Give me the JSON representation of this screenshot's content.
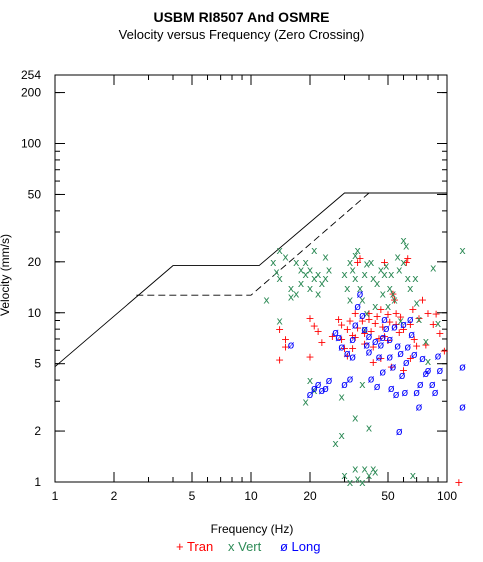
{
  "chart_data": {
    "type": "scatter",
    "title": "USBM RI8507 And OSMRE",
    "subtitle": "Velocity versus Frequency (Zero Crossing)",
    "xlabel": "Frequency (Hz)",
    "ylabel": "Velocity (mm/s)",
    "x_scale": "log",
    "y_scale": "log",
    "xlim": [
      1,
      100
    ],
    "ylim": [
      1,
      254
    ],
    "x_ticks": [
      1,
      2,
      5,
      10,
      20,
      50,
      100
    ],
    "y_ticks": [
      1,
      2,
      5,
      10,
      20,
      50,
      100,
      200,
      254
    ],
    "limit_curves": [
      {
        "style": "solid",
        "points": [
          [
            1,
            4.8
          ],
          [
            4,
            19
          ],
          [
            11,
            19
          ],
          [
            30,
            51
          ],
          [
            100,
            51
          ]
        ]
      },
      {
        "style": "dashed",
        "points": [
          [
            2.6,
            12.7
          ],
          [
            10,
            12.7
          ],
          [
            40,
            51
          ]
        ]
      }
    ],
    "series": [
      {
        "name": "Tran",
        "symbol": "+",
        "color": "#ff0000",
        "values": [
          [
            14,
            8
          ],
          [
            15,
            7
          ],
          [
            14,
            5.3
          ],
          [
            15,
            6.3
          ],
          [
            20,
            9.3
          ],
          [
            21,
            8.4
          ],
          [
            22,
            7.8
          ],
          [
            23,
            6.7
          ],
          [
            20,
            5.5
          ],
          [
            26,
            7.3
          ],
          [
            28,
            9.2
          ],
          [
            29,
            8.5
          ],
          [
            29,
            7
          ],
          [
            30,
            6.2
          ],
          [
            31,
            8
          ],
          [
            31,
            5.6
          ],
          [
            32,
            9
          ],
          [
            33,
            7.4
          ],
          [
            33,
            6.2
          ],
          [
            34,
            10
          ],
          [
            34,
            7.2
          ],
          [
            35,
            8.2
          ],
          [
            35,
            20
          ],
          [
            36,
            21
          ],
          [
            37,
            9
          ],
          [
            38,
            7.6
          ],
          [
            38,
            6.6
          ],
          [
            40,
            10
          ],
          [
            40,
            9.2
          ],
          [
            41,
            7.8
          ],
          [
            42,
            6.3
          ],
          [
            42,
            5.1
          ],
          [
            43,
            8.7
          ],
          [
            44,
            9.6
          ],
          [
            45,
            7.1
          ],
          [
            46,
            10.5
          ],
          [
            46,
            5.4
          ],
          [
            47,
            8.3
          ],
          [
            48,
            7.3
          ],
          [
            48,
            20
          ],
          [
            50,
            9.8
          ],
          [
            50,
            6.9
          ],
          [
            51,
            8.9
          ],
          [
            52,
            4.8
          ],
          [
            53,
            13
          ],
          [
            54,
            12
          ],
          [
            55,
            8.6
          ],
          [
            55,
            10
          ],
          [
            57,
            7.7
          ],
          [
            58,
            9.5
          ],
          [
            60,
            4.6
          ],
          [
            60,
            8
          ],
          [
            62,
            20
          ],
          [
            63,
            21
          ],
          [
            65,
            8.6
          ],
          [
            65,
            5.4
          ],
          [
            67,
            10.5
          ],
          [
            68,
            7
          ],
          [
            70,
            6.4
          ],
          [
            72,
            9.3
          ],
          [
            75,
            12
          ],
          [
            78,
            6.5
          ],
          [
            80,
            10
          ],
          [
            85,
            8.6
          ],
          [
            88,
            9.9
          ],
          [
            92,
            7.6
          ],
          [
            97,
            6
          ],
          [
            115,
            1
          ]
        ]
      },
      {
        "name": "Vert",
        "symbol": "x",
        "color": "#2e8b57",
        "values": [
          [
            14,
            23.5
          ],
          [
            13,
            20
          ],
          [
            13.5,
            17.5
          ],
          [
            15,
            21.5
          ],
          [
            14,
            16
          ],
          [
            16,
            14
          ],
          [
            16,
            12.5
          ],
          [
            12,
            12
          ],
          [
            14,
            9
          ],
          [
            17,
            20
          ],
          [
            17,
            13
          ],
          [
            18,
            18
          ],
          [
            18,
            15
          ],
          [
            19,
            17
          ],
          [
            19,
            20
          ],
          [
            20,
            14
          ],
          [
            20,
            18
          ],
          [
            21,
            16
          ],
          [
            22,
            13
          ],
          [
            22,
            17
          ],
          [
            23,
            15
          ],
          [
            24,
            16
          ],
          [
            24,
            21.5
          ],
          [
            25,
            18
          ],
          [
            21,
            23.5
          ],
          [
            20,
            4
          ],
          [
            19,
            3
          ],
          [
            21,
            3.5
          ],
          [
            30,
            17
          ],
          [
            31,
            14
          ],
          [
            32,
            12
          ],
          [
            32,
            20
          ],
          [
            33,
            18
          ],
          [
            34,
            16
          ],
          [
            34,
            22
          ],
          [
            35,
            23.5
          ],
          [
            36,
            14
          ],
          [
            37,
            12
          ],
          [
            38,
            17
          ],
          [
            38,
            8
          ],
          [
            39,
            10
          ],
          [
            39,
            19.5
          ],
          [
            41,
            20
          ],
          [
            42,
            16
          ],
          [
            43,
            11
          ],
          [
            44,
            15
          ],
          [
            46,
            18
          ],
          [
            47,
            13
          ],
          [
            48,
            17
          ],
          [
            49,
            19
          ],
          [
            50,
            11
          ],
          [
            51,
            14
          ],
          [
            52,
            17
          ],
          [
            53,
            13
          ],
          [
            54,
            12
          ],
          [
            56,
            21.5
          ],
          [
            57,
            18
          ],
          [
            58,
            9
          ],
          [
            60,
            27
          ],
          [
            60,
            20
          ],
          [
            62,
            25
          ],
          [
            63,
            16
          ],
          [
            65,
            14
          ],
          [
            69,
            16
          ],
          [
            70,
            11.5
          ],
          [
            72,
            9.2
          ],
          [
            78,
            6.8
          ],
          [
            80,
            5.2
          ],
          [
            85,
            18.5
          ],
          [
            90,
            8.7
          ],
          [
            27,
            1.7
          ],
          [
            29,
            1.9
          ],
          [
            30,
            1.1
          ],
          [
            32,
            1
          ],
          [
            34,
            1.2
          ],
          [
            35,
            1.05
          ],
          [
            37,
            1
          ],
          [
            38,
            1.2
          ],
          [
            40,
            1.1
          ],
          [
            42,
            1.2
          ],
          [
            43,
            1.15
          ],
          [
            40,
            2.1
          ],
          [
            34,
            2.4
          ],
          [
            29,
            3.2
          ],
          [
            37,
            3.8
          ],
          [
            67,
            1.1
          ],
          [
            120,
            23.5
          ]
        ]
      },
      {
        "name": "Long",
        "symbol": "ø",
        "color": "#0000ff",
        "values": [
          [
            16,
            6.5
          ],
          [
            20,
            3.3
          ],
          [
            21,
            3.6
          ],
          [
            22,
            3.8
          ],
          [
            23,
            3.5
          ],
          [
            24,
            3.6
          ],
          [
            25,
            4
          ],
          [
            27,
            7.7
          ],
          [
            28,
            7.2
          ],
          [
            29,
            6.3
          ],
          [
            30,
            3.8
          ],
          [
            31,
            5.8
          ],
          [
            32,
            4.1
          ],
          [
            33,
            5.5
          ],
          [
            33,
            7
          ],
          [
            34,
            8.5
          ],
          [
            35,
            11
          ],
          [
            36,
            13
          ],
          [
            37,
            9.7
          ],
          [
            38,
            8
          ],
          [
            39,
            6.5
          ],
          [
            40,
            5.9
          ],
          [
            40,
            7.3
          ],
          [
            41,
            4.1
          ],
          [
            43,
            6.8
          ],
          [
            44,
            3.7
          ],
          [
            45,
            5.5
          ],
          [
            46,
            6.5
          ],
          [
            47,
            7.2
          ],
          [
            47,
            4.5
          ],
          [
            48,
            9.2
          ],
          [
            49,
            8.1
          ],
          [
            51,
            7
          ],
          [
            51,
            5.5
          ],
          [
            52,
            3.6
          ],
          [
            53,
            4.8
          ],
          [
            54,
            8.3
          ],
          [
            55,
            3.3
          ],
          [
            56,
            6.4
          ],
          [
            57,
            2
          ],
          [
            58,
            5.8
          ],
          [
            59,
            4.3
          ],
          [
            60,
            8.6
          ],
          [
            61,
            3.4
          ],
          [
            62,
            5.1
          ],
          [
            63,
            6.3
          ],
          [
            65,
            9.2
          ],
          [
            66,
            7.5
          ],
          [
            68,
            5.7
          ],
          [
            70,
            3.4
          ],
          [
            72,
            2.8
          ],
          [
            73,
            3.8
          ],
          [
            75,
            5.4
          ],
          [
            78,
            4.4
          ],
          [
            80,
            4.6
          ],
          [
            84,
            3.8
          ],
          [
            87,
            3.4
          ],
          [
            90,
            5.6
          ],
          [
            92,
            4.6
          ],
          [
            120,
            4.8
          ],
          [
            120,
            2.8
          ]
        ]
      }
    ],
    "legend": [
      {
        "symbol": "+",
        "label": "Tran",
        "color": "#ff0000"
      },
      {
        "symbol": "x",
        "label": "Vert",
        "color": "#2e8b57"
      },
      {
        "symbol": "ø",
        "label": "Long",
        "color": "#0000ff"
      }
    ],
    "legend_position": "bottom"
  }
}
